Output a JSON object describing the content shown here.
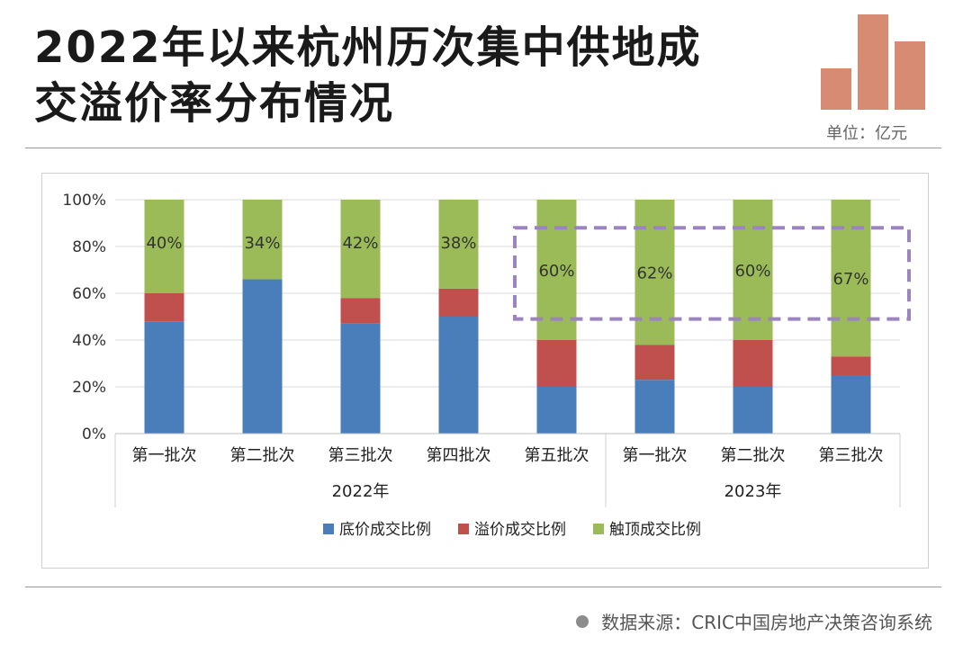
{
  "header": {
    "title_line1": "2022年以来杭州历次集中供地成",
    "title_line2": "交溢价率分布情况",
    "unit": "单位：亿元",
    "logo_color": "#d68b72"
  },
  "footer": {
    "source": "数据来源：CRIC中国房地产决策咨询系统"
  },
  "chart_data": {
    "type": "bar",
    "stacked": true,
    "categories": [
      "第一批次",
      "第二批次",
      "第三批次",
      "第四批次",
      "第五批次",
      "第一批次",
      "第二批次",
      "第三批次"
    ],
    "groups": [
      {
        "label": "2022年",
        "count": 5
      },
      {
        "label": "2023年",
        "count": 3
      }
    ],
    "series": [
      {
        "name": "底价成交比例",
        "color": "#4a7ebb",
        "values": [
          48,
          66,
          47,
          50,
          20,
          23,
          20,
          25
        ]
      },
      {
        "name": "溢价成交比例",
        "color": "#c0504d",
        "values": [
          12,
          0,
          11,
          12,
          20,
          15,
          20,
          8
        ]
      },
      {
        "name": "触顶成交比例",
        "color": "#9bbb59",
        "values": [
          40,
          34,
          42,
          38,
          60,
          62,
          60,
          67
        ]
      }
    ],
    "data_labels": [
      "40%",
      "34%",
      "42%",
      "38%",
      "60%",
      "62%",
      "60%",
      "67%"
    ],
    "y_ticks": [
      "0%",
      "20%",
      "40%",
      "60%",
      "80%",
      "100%"
    ],
    "ylim": [
      0,
      100
    ],
    "grid": true,
    "legend": "bottom",
    "highlight_color": "#9b84c0"
  }
}
